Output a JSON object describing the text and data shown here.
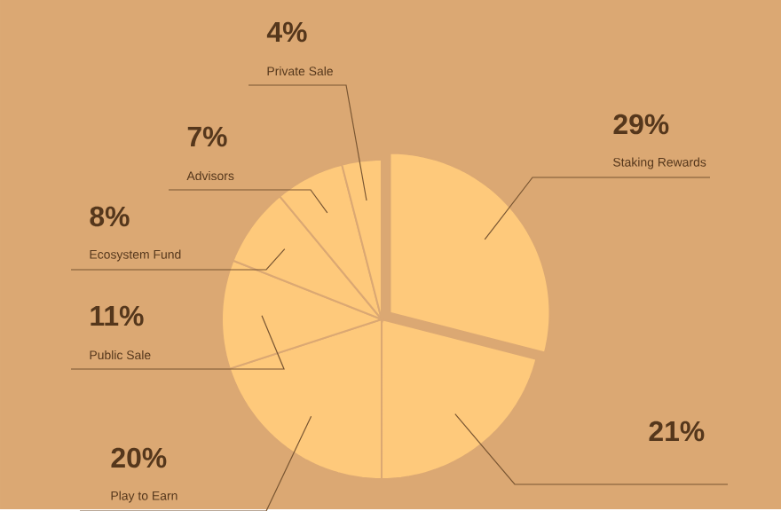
{
  "chart_data": {
    "type": "pie",
    "categories": [
      "Staking Rewards",
      null,
      "Play to Earn",
      "Public Sale",
      "Ecosystem Fund",
      "Advisors",
      "Private Sale"
    ],
    "values": [
      29,
      21,
      20,
      11,
      8,
      7,
      4
    ],
    "value_labels": [
      "29%",
      "21%",
      "20%",
      "11%",
      "8%",
      "7%",
      "4%"
    ],
    "colors": [
      "#fec97b",
      "#fec97b",
      "#fec97b",
      "#fec97b",
      "#fec97b",
      "#fec97b",
      "#fec97b"
    ]
  }
}
